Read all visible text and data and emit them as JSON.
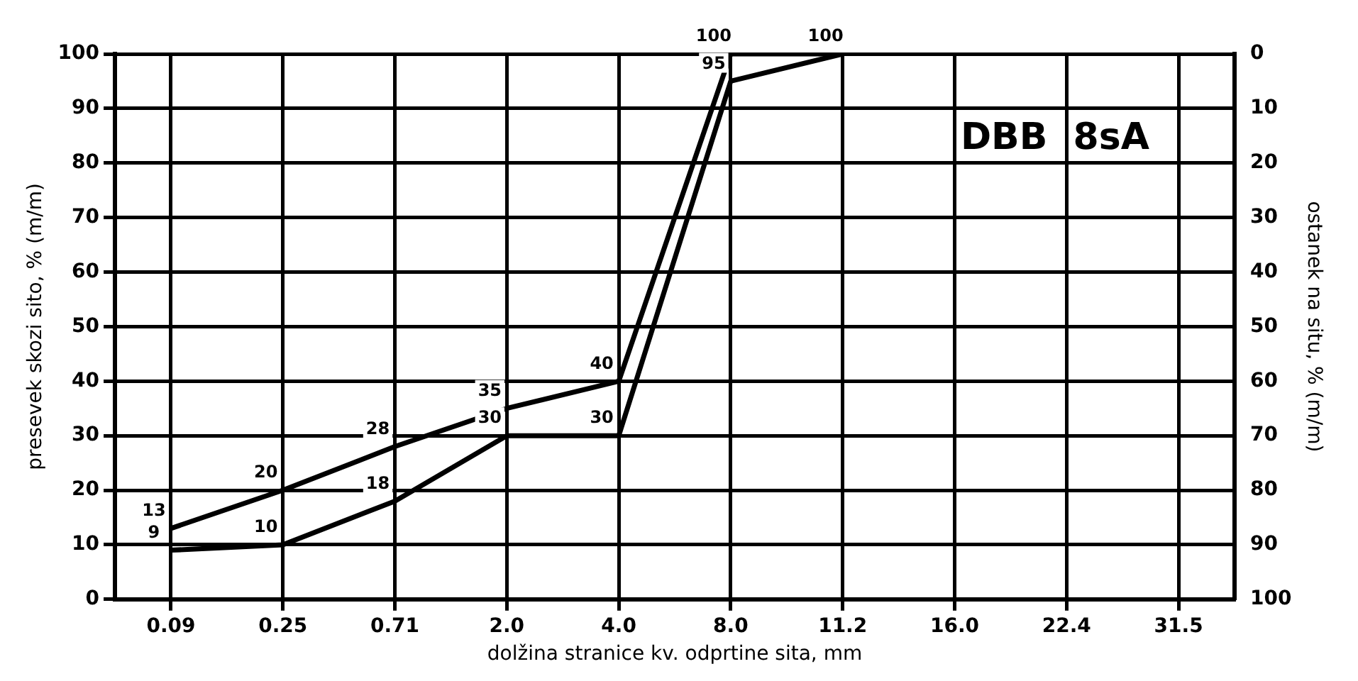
{
  "chart_data": {
    "type": "line",
    "xlabel": "dolžina stranice kv. odprtine sita, mm",
    "ylabel": "presevek skozi sito, % (m/m)",
    "y2label": "ostanek na situ, % (m/m)",
    "categories": [
      "0.09",
      "0.25",
      "0.71",
      "2.0",
      "4.0",
      "8.0",
      "11.2",
      "16.0",
      "22.4",
      "31.5"
    ],
    "series": [
      {
        "color": "#000000",
        "values": [
          13,
          20,
          28,
          35,
          40,
          100,
          100,
          null,
          null,
          null
        ],
        "value_labels": [
          "13",
          "20",
          "28",
          "35",
          "40",
          "100",
          "100",
          null,
          null,
          null
        ]
      },
      {
        "color": "#000000",
        "values": [
          9,
          10,
          18,
          30,
          30,
          95,
          100,
          null,
          null,
          null
        ],
        "value_labels": [
          "9",
          "10",
          "18",
          "30",
          "30",
          "95",
          null,
          null,
          null,
          null
        ]
      }
    ],
    "ylim": [
      0,
      100
    ],
    "yticks": [
      0,
      10,
      20,
      30,
      40,
      50,
      60,
      70,
      80,
      90,
      100
    ],
    "y2lim": [
      100,
      0
    ],
    "y2ticks": [
      0,
      10,
      20,
      30,
      40,
      50,
      60,
      70,
      80,
      90,
      100
    ],
    "annotations": [
      "DBB  8sA"
    ],
    "grid": true,
    "legend": false,
    "marker": "none",
    "line_style": "solid"
  }
}
